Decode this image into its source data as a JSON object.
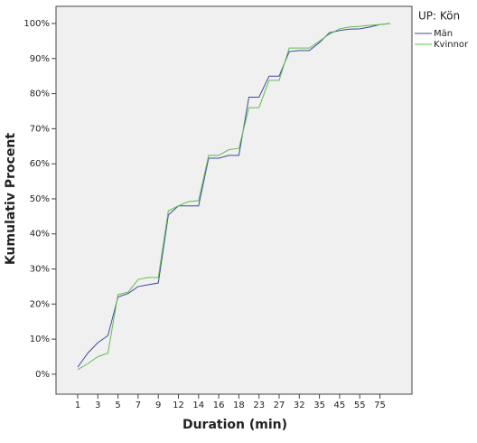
{
  "chart_data": {
    "type": "line",
    "categories": [
      "1",
      null,
      "3",
      null,
      "5",
      null,
      "7",
      null,
      "9",
      null,
      "12",
      null,
      "14",
      null,
      "16",
      null,
      "18",
      null,
      "23",
      null,
      "27",
      null,
      "32",
      null,
      "35",
      null,
      "45",
      null,
      "55",
      null,
      "75",
      null
    ],
    "series": [
      {
        "name": "Män",
        "color": "#3b4a9e",
        "values": [
          2,
          6,
          9,
          11,
          22,
          23,
          25,
          25.5,
          26,
          45.4,
          48,
          48,
          48,
          61.6,
          61.6,
          62.4,
          62.4,
          79,
          79,
          85,
          85,
          92,
          92.3,
          92.3,
          94.6,
          97.4,
          98,
          98.4,
          98.5,
          99,
          99.7,
          100
        ]
      },
      {
        "name": "Kvinnor",
        "color": "#5cc04a",
        "values": [
          1.3,
          3,
          5,
          6,
          22.7,
          23.4,
          27,
          27.6,
          27.6,
          46.6,
          48,
          49.2,
          49.5,
          62.4,
          62.4,
          64,
          64.4,
          76,
          76,
          83.8,
          83.8,
          93,
          93,
          93,
          95,
          97,
          98.5,
          99,
          99.2,
          99.5,
          99.7,
          100
        ]
      }
    ],
    "legend_title": "UP: Kön",
    "xlabel": "Duration (min)",
    "ylabel": "Kumulativ Procent",
    "ylim": [
      -5.7,
      104.9
    ],
    "yticks": [
      {
        "value": 0,
        "label": "0%"
      },
      {
        "value": 10,
        "label": "10%"
      },
      {
        "value": 20,
        "label": "20%"
      },
      {
        "value": 30,
        "label": "30%"
      },
      {
        "value": 40,
        "label": "40%"
      },
      {
        "value": 50,
        "label": "50%"
      },
      {
        "value": 60,
        "label": "60%"
      },
      {
        "value": 70,
        "label": "70%"
      },
      {
        "value": 80,
        "label": "80%"
      },
      {
        "value": 90,
        "label": "90%"
      },
      {
        "value": 100,
        "label": "100%"
      }
    ]
  }
}
